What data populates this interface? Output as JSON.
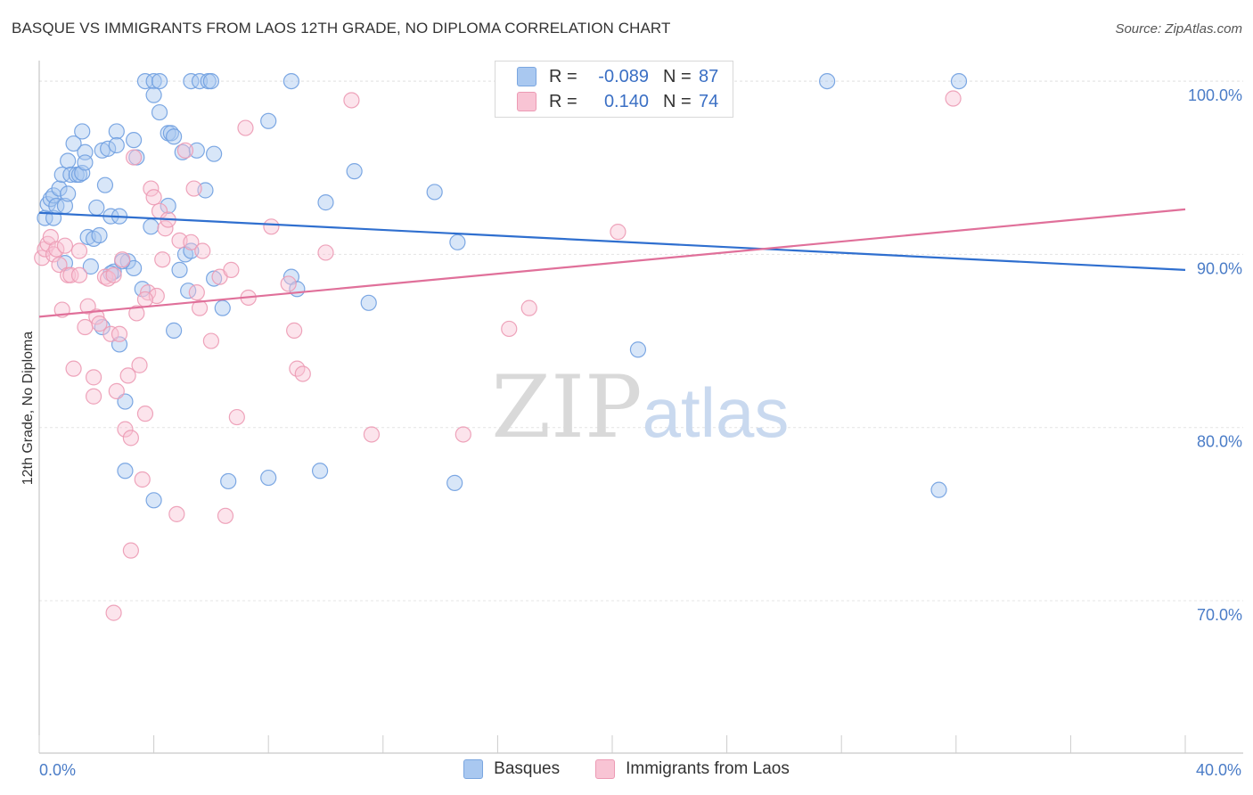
{
  "title": "BASQUE VS IMMIGRANTS FROM LAOS 12TH GRADE, NO DIPLOMA CORRELATION CHART",
  "source": "Source: ZipAtlas.com",
  "watermark": {
    "zip": "ZIP",
    "atlas": "atlas"
  },
  "legend": {
    "rows": [
      {
        "r_label": "R =",
        "r_value": "-0.089",
        "n_label": "N =",
        "n_value": "87",
        "color": "#a9c8f0",
        "border": "#7aa6e0"
      },
      {
        "r_label": "R =",
        "r_value": "0.140",
        "n_label": "N =",
        "n_value": "74",
        "color": "#f8c4d4",
        "border": "#ec9ab4"
      }
    ]
  },
  "chart_data": {
    "type": "scatter",
    "title": "BASQUE VS IMMIGRANTS FROM LAOS 12TH GRADE, NO DIPLOMA CORRELATION CHART",
    "xlabel": "",
    "ylabel": "12th Grade, No Diploma",
    "xlim": [
      0,
      40
    ],
    "ylim": [
      61.2,
      101.6
    ],
    "x_tick_labels": [
      "0.0%",
      "40.0%"
    ],
    "y_ticks": [
      70,
      80,
      90,
      100
    ],
    "y_tick_labels": [
      "70.0%",
      "80.0%",
      "90.0%",
      "100.0%"
    ],
    "grid": true,
    "legend_position": "top-center",
    "series": [
      {
        "name": "Basques",
        "color": "#6f9fe0",
        "fill": "#a9c8f0",
        "trend": {
          "x": [
            0,
            40
          ],
          "y": [
            92.4,
            89.1
          ],
          "color": "#2f6fcf"
        },
        "points": [
          [
            0.2,
            92.1
          ],
          [
            0.3,
            92.9
          ],
          [
            0.4,
            93.2
          ],
          [
            0.5,
            93.4
          ],
          [
            0.5,
            92.1
          ],
          [
            0.6,
            92.8
          ],
          [
            0.7,
            93.8
          ],
          [
            0.8,
            94.6
          ],
          [
            0.9,
            92.8
          ],
          [
            1.0,
            93.5
          ],
          [
            1.0,
            95.4
          ],
          [
            1.1,
            94.6
          ],
          [
            1.2,
            96.4
          ],
          [
            1.3,
            94.6
          ],
          [
            1.4,
            94.6
          ],
          [
            1.5,
            94.7
          ],
          [
            1.5,
            97.1
          ],
          [
            1.6,
            95.9
          ],
          [
            1.7,
            91.0
          ],
          [
            1.8,
            89.3
          ],
          [
            1.9,
            90.9
          ],
          [
            2.0,
            92.7
          ],
          [
            2.1,
            91.1
          ],
          [
            2.2,
            96.0
          ],
          [
            2.3,
            94.0
          ],
          [
            2.4,
            96.1
          ],
          [
            2.5,
            92.2
          ],
          [
            2.6,
            89.0
          ],
          [
            2.7,
            97.1
          ],
          [
            2.7,
            96.3
          ],
          [
            2.8,
            92.2
          ],
          [
            3.1,
            89.6
          ],
          [
            3.3,
            96.6
          ],
          [
            3.3,
            89.2
          ],
          [
            3.4,
            95.6
          ],
          [
            3.6,
            88.0
          ],
          [
            3.7,
            100.0
          ],
          [
            3.9,
            91.6
          ],
          [
            4.0,
            100.0
          ],
          [
            4.0,
            99.2
          ],
          [
            4.2,
            100.0
          ],
          [
            4.2,
            98.2
          ],
          [
            4.5,
            97.0
          ],
          [
            4.5,
            92.8
          ],
          [
            4.6,
            97.0
          ],
          [
            4.7,
            96.8
          ],
          [
            4.9,
            89.1
          ],
          [
            5.0,
            95.9
          ],
          [
            5.1,
            90.0
          ],
          [
            5.2,
            87.9
          ],
          [
            5.3,
            90.2
          ],
          [
            5.3,
            100.0
          ],
          [
            5.5,
            96.0
          ],
          [
            5.6,
            100.0
          ],
          [
            5.8,
            93.7
          ],
          [
            5.9,
            100.0
          ],
          [
            6.0,
            100.0
          ],
          [
            6.1,
            95.8
          ],
          [
            6.4,
            86.9
          ],
          [
            8.0,
            97.7
          ],
          [
            8.8,
            100.0
          ],
          [
            8.8,
            88.7
          ],
          [
            9.0,
            88.0
          ],
          [
            10.0,
            93.0
          ],
          [
            11.0,
            94.8
          ],
          [
            11.5,
            87.2
          ],
          [
            13.8,
            93.6
          ],
          [
            14.6,
            90.7
          ],
          [
            2.2,
            85.8
          ],
          [
            2.8,
            84.8
          ],
          [
            3.0,
            81.5
          ],
          [
            3.0,
            77.5
          ],
          [
            4.0,
            75.8
          ],
          [
            4.7,
            85.6
          ],
          [
            6.1,
            88.6
          ],
          [
            6.6,
            76.9
          ],
          [
            8.0,
            77.1
          ],
          [
            9.8,
            77.5
          ],
          [
            14.5,
            76.8
          ],
          [
            20.9,
            84.5
          ],
          [
            27.5,
            100.0
          ],
          [
            32.1,
            100.0
          ],
          [
            31.4,
            76.4
          ],
          [
            0.9,
            89.5
          ],
          [
            2.5,
            88.9
          ],
          [
            1.6,
            95.3
          ],
          [
            2.9,
            89.6
          ]
        ]
      },
      {
        "name": "Immigrants from Laos",
        "color": "#ec9ab4",
        "fill": "#f8c4d4",
        "trend": {
          "x": [
            0,
            40
          ],
          "y": [
            86.4,
            92.6
          ],
          "color": "#e0709a"
        },
        "points": [
          [
            0.1,
            89.8
          ],
          [
            0.2,
            90.3
          ],
          [
            0.3,
            90.6
          ],
          [
            0.4,
            91.0
          ],
          [
            0.5,
            90.0
          ],
          [
            0.6,
            90.3
          ],
          [
            0.7,
            89.4
          ],
          [
            0.8,
            86.8
          ],
          [
            0.9,
            90.5
          ],
          [
            1.0,
            88.8
          ],
          [
            1.1,
            88.8
          ],
          [
            1.2,
            83.4
          ],
          [
            1.4,
            88.8
          ],
          [
            1.4,
            90.2
          ],
          [
            1.6,
            85.8
          ],
          [
            1.7,
            87.0
          ],
          [
            1.9,
            81.8
          ],
          [
            2.0,
            86.4
          ],
          [
            2.1,
            86.0
          ],
          [
            2.3,
            88.7
          ],
          [
            2.4,
            88.6
          ],
          [
            2.5,
            85.4
          ],
          [
            2.6,
            88.8
          ],
          [
            2.7,
            82.1
          ],
          [
            2.8,
            85.4
          ],
          [
            2.9,
            89.7
          ],
          [
            3.0,
            79.9
          ],
          [
            3.1,
            83.0
          ],
          [
            3.2,
            79.4
          ],
          [
            3.3,
            95.6
          ],
          [
            3.4,
            86.6
          ],
          [
            3.5,
            83.6
          ],
          [
            3.6,
            77.0
          ],
          [
            3.7,
            80.8
          ],
          [
            3.8,
            87.8
          ],
          [
            3.9,
            93.8
          ],
          [
            4.0,
            93.3
          ],
          [
            4.1,
            87.6
          ],
          [
            4.2,
            92.5
          ],
          [
            4.3,
            89.7
          ],
          [
            4.4,
            91.5
          ],
          [
            4.5,
            92.0
          ],
          [
            4.8,
            75.0
          ],
          [
            4.9,
            90.8
          ],
          [
            5.1,
            96.0
          ],
          [
            5.3,
            90.7
          ],
          [
            5.4,
            93.8
          ],
          [
            5.5,
            87.8
          ],
          [
            5.6,
            86.9
          ],
          [
            5.7,
            90.2
          ],
          [
            6.0,
            85.0
          ],
          [
            6.3,
            88.7
          ],
          [
            6.5,
            74.9
          ],
          [
            6.7,
            89.1
          ],
          [
            6.9,
            80.6
          ],
          [
            7.2,
            97.3
          ],
          [
            7.3,
            87.5
          ],
          [
            8.1,
            91.6
          ],
          [
            8.7,
            88.3
          ],
          [
            8.9,
            85.6
          ],
          [
            9.0,
            83.4
          ],
          [
            9.2,
            83.1
          ],
          [
            10.0,
            90.1
          ],
          [
            10.9,
            98.9
          ],
          [
            11.6,
            79.6
          ],
          [
            14.8,
            79.6
          ],
          [
            16.4,
            85.7
          ],
          [
            17.1,
            86.9
          ],
          [
            20.2,
            91.3
          ],
          [
            31.9,
            99.0
          ],
          [
            3.2,
            72.9
          ],
          [
            2.6,
            69.3
          ],
          [
            1.9,
            82.9
          ],
          [
            3.7,
            87.4
          ]
        ]
      }
    ]
  },
  "bottom_legend": [
    {
      "label": "Basques",
      "color": "#a9c8f0",
      "border": "#7aa6e0"
    },
    {
      "label": "Immigrants from Laos",
      "color": "#f8c4d4",
      "border": "#ec9ab4"
    }
  ]
}
